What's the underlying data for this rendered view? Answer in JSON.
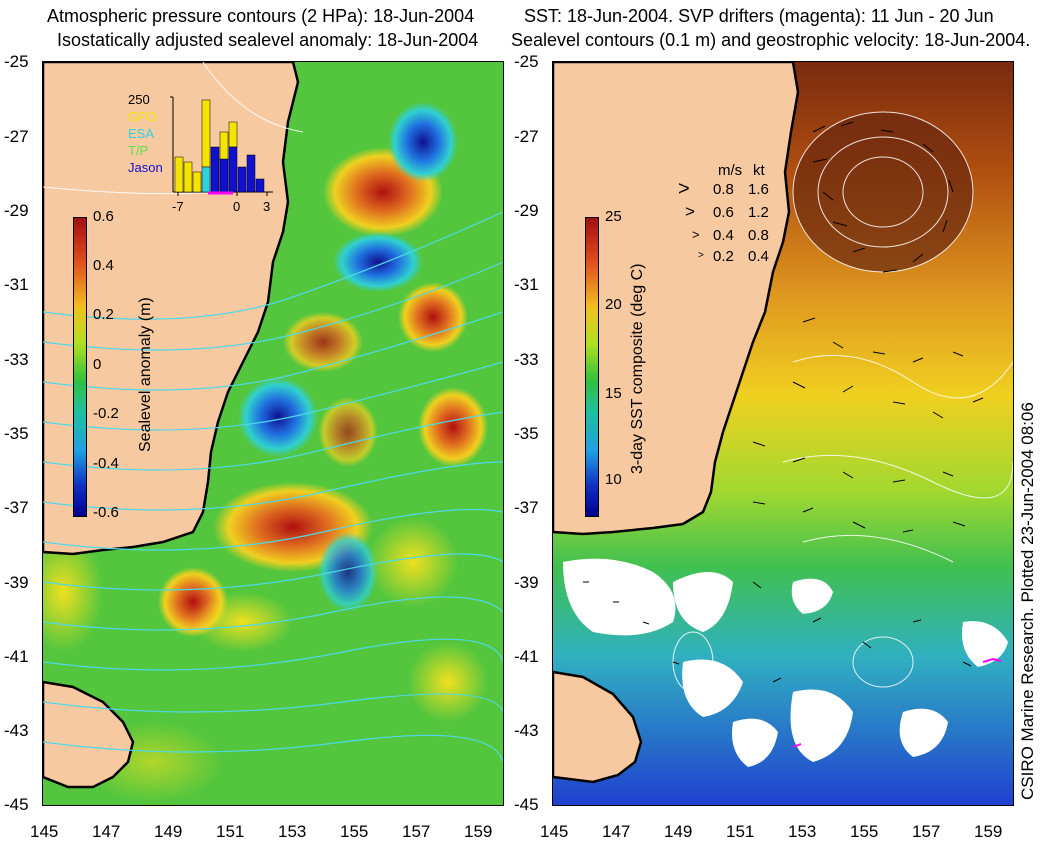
{
  "left_panel": {
    "title_line1": "Atmospheric pressure contours (2 HPa): 18-Jun-2004",
    "title_line2": "Isostatically adjusted sealevel anomaly: 18-Jun-2004",
    "colorbar_label": "Sealevel anomaly (m)",
    "colorbar_ticks": [
      "0.6",
      "0.4",
      "0.2",
      "0",
      "-0.2",
      "-0.4",
      "-0.6"
    ],
    "inset": {
      "ymax_label": "250",
      "legend": [
        {
          "name": "GFO",
          "color": "#f5e400"
        },
        {
          "name": "ESA",
          "color": "#2fd3e0"
        },
        {
          "name": "T/P",
          "color": "#5fe04a"
        },
        {
          "name": "Jason",
          "color": "#1010d0"
        }
      ],
      "x_ticks": [
        "-7",
        "0",
        "3"
      ]
    }
  },
  "right_panel": {
    "title_line1": "SST: 18-Jun-2004. SVP drifters (magenta): 11 Jun - 20 Jun",
    "title_line2": "Sealevel contours (0.1 m) and geostrophic velocity: 18-Jun-2004.",
    "colorbar_label": "3-day SST composite (deg C)",
    "colorbar_ticks": [
      "25",
      "20",
      "15",
      "10"
    ],
    "velocity_legend": {
      "header_ms": "m/s",
      "header_kt": "kt",
      "rows": [
        {
          "ms": "0.8",
          "kt": "1.6"
        },
        {
          "ms": "0.6",
          "kt": "1.2"
        },
        {
          "ms": "0.4",
          "kt": "0.8"
        },
        {
          "ms": "0.2",
          "kt": "0.4"
        }
      ]
    },
    "credit": "CSIRO Marine Research. Plotted 23-Jun-2004 08:06"
  },
  "axes": {
    "y_ticks": [
      "-25",
      "-27",
      "-29",
      "-31",
      "-33",
      "-35",
      "-37",
      "-39",
      "-41",
      "-43",
      "-45"
    ],
    "x_ticks": [
      "145",
      "147",
      "149",
      "151",
      "153",
      "155",
      "157",
      "159"
    ]
  },
  "colors": {
    "land": "#f7c9a0",
    "ocean_mid": "#3fbf3f",
    "coast": "#000000"
  }
}
